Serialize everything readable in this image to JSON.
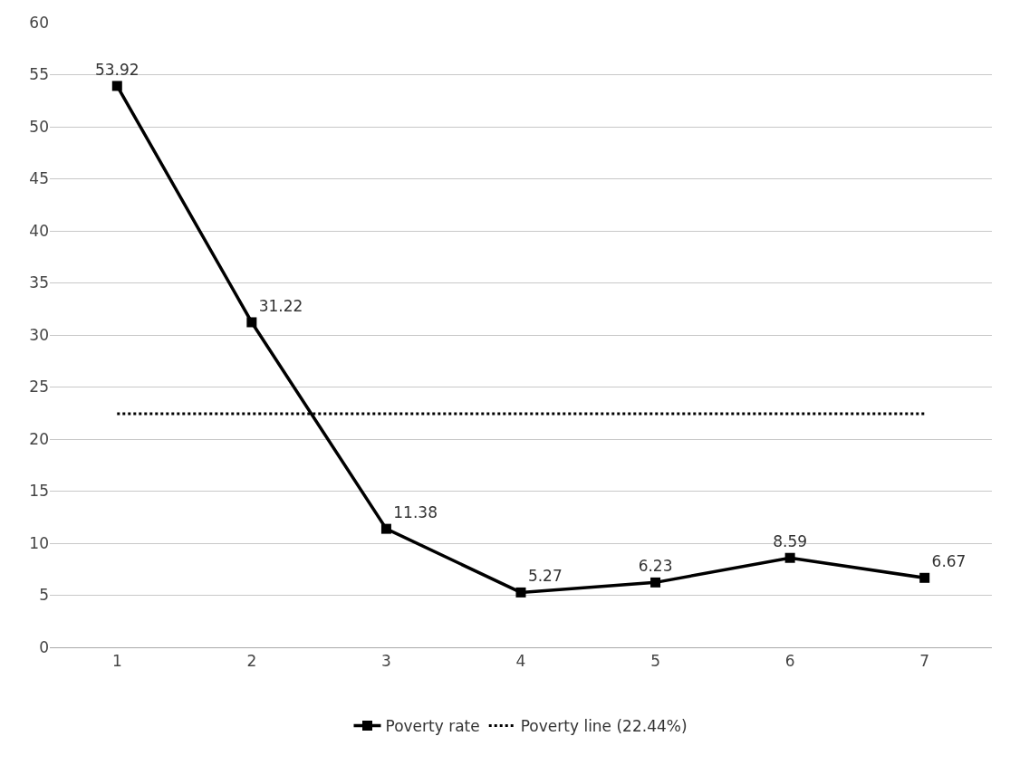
{
  "chart_data": {
    "type": "line",
    "categories": [
      "1",
      "2",
      "3",
      "4",
      "5",
      "6",
      "7"
    ],
    "series": [
      {
        "name": "Poverty rate",
        "color": "#000000",
        "marker": "square",
        "line_style": "solid",
        "values": [
          53.92,
          31.22,
          11.38,
          5.27,
          6.23,
          8.59,
          6.67
        ],
        "value_labels": [
          "53.92",
          "31.22",
          "11.38",
          "5.27",
          "6.23",
          "8.59",
          "6.67"
        ]
      },
      {
        "name": "Poverty line (22.44%)",
        "color": "#000000",
        "marker": "none",
        "line_style": "dotted",
        "values": [
          22.44,
          22.44,
          22.44,
          22.44,
          22.44,
          22.44,
          22.44
        ]
      }
    ],
    "ylim": [
      0,
      60
    ],
    "yticks": [
      0,
      5,
      10,
      15,
      20,
      25,
      30,
      35,
      40,
      45,
      50,
      55,
      60
    ],
    "grid": "y",
    "legend": "bottom"
  }
}
